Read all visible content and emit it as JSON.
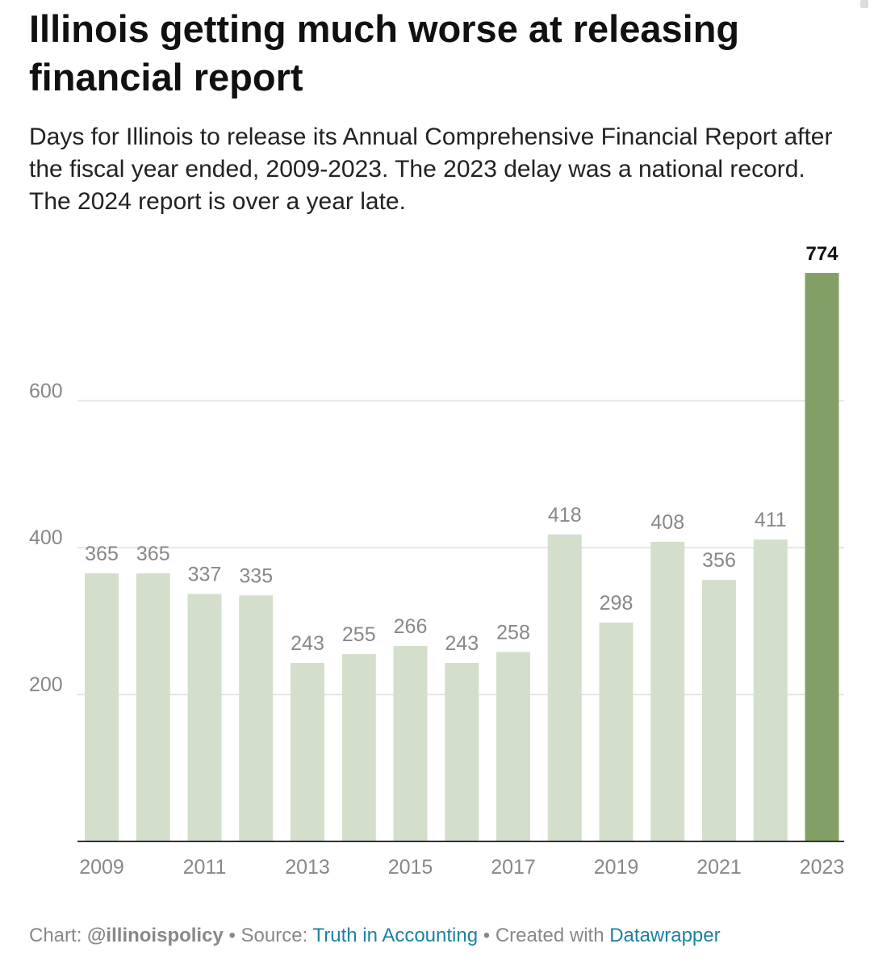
{
  "title": "Illinois getting much worse at releasing financial report",
  "subtitle": "Days for Illinois to release its Annual Comprehensive Financial Report after the fiscal year ended, 2009-2023. The 2023 delay was a national record. The 2024 report is over a year late.",
  "footer": {
    "chart_prefix": "Chart:",
    "chart_author": "@illinoispolicy",
    "sep1": "•",
    "source_prefix": "Source:",
    "source_link": "Truth in Accounting",
    "sep2": "•",
    "created_prefix": "Created with",
    "created_link": "Datawrapper"
  },
  "colors": {
    "bar": "#d3dfcb",
    "bar_highlight": "#82a066",
    "value_label": "#888888",
    "value_label_highlight": "#111111",
    "grid": "#e5e5e5",
    "axis": "#333333",
    "tick_label": "#888888",
    "link": "#1d81a2"
  },
  "chart_data": {
    "type": "bar",
    "categories": [
      "2009",
      "2010",
      "2011",
      "2012",
      "2013",
      "2014",
      "2015",
      "2016",
      "2017",
      "2018",
      "2019",
      "2020",
      "2021",
      "2022",
      "2023"
    ],
    "values": [
      365,
      365,
      337,
      335,
      243,
      255,
      266,
      243,
      258,
      418,
      298,
      408,
      356,
      411,
      774
    ],
    "x_tick_labels": [
      "2009",
      "2011",
      "2013",
      "2015",
      "2017",
      "2019",
      "2021",
      "2023"
    ],
    "y_ticks": [
      200,
      400,
      600
    ],
    "ylim": [
      0,
      774
    ],
    "grid": true,
    "highlight_category": "2023"
  }
}
